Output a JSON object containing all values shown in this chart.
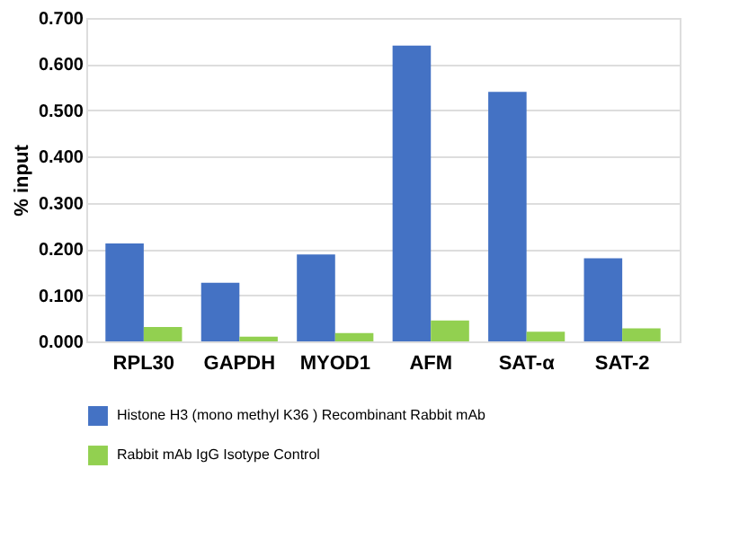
{
  "chart_data": {
    "type": "bar",
    "ylabel": "% input",
    "categories": [
      "RPL30",
      "GAPDH",
      "MYOD1",
      "AFM",
      "SAT-α",
      "SAT-2"
    ],
    "series": [
      {
        "name": "Histone H3 (mono methyl K36 ) Recombinant Rabbit mAb",
        "color": "#4472c4",
        "values": [
          0.212,
          0.127,
          0.188,
          0.64,
          0.54,
          0.18
        ]
      },
      {
        "name": "Rabbit mAb IgG Isotype Control",
        "color": "#92d050",
        "values": [
          0.031,
          0.01,
          0.018,
          0.045,
          0.021,
          0.028
        ]
      }
    ],
    "ylim": [
      0,
      0.7
    ],
    "yticks": [
      {
        "value": 0,
        "label": "0.000"
      },
      {
        "value": 0.1,
        "label": "0.100"
      },
      {
        "value": 0.2,
        "label": "0.200"
      },
      {
        "value": 0.3,
        "label": "0.300"
      },
      {
        "value": 0.4,
        "label": "0.400"
      },
      {
        "value": 0.5,
        "label": "0.500"
      },
      {
        "value": 0.6,
        "label": "0.600"
      },
      {
        "value": 0.7,
        "label": "0.700"
      }
    ],
    "grid": "y",
    "legend": "bottom"
  }
}
